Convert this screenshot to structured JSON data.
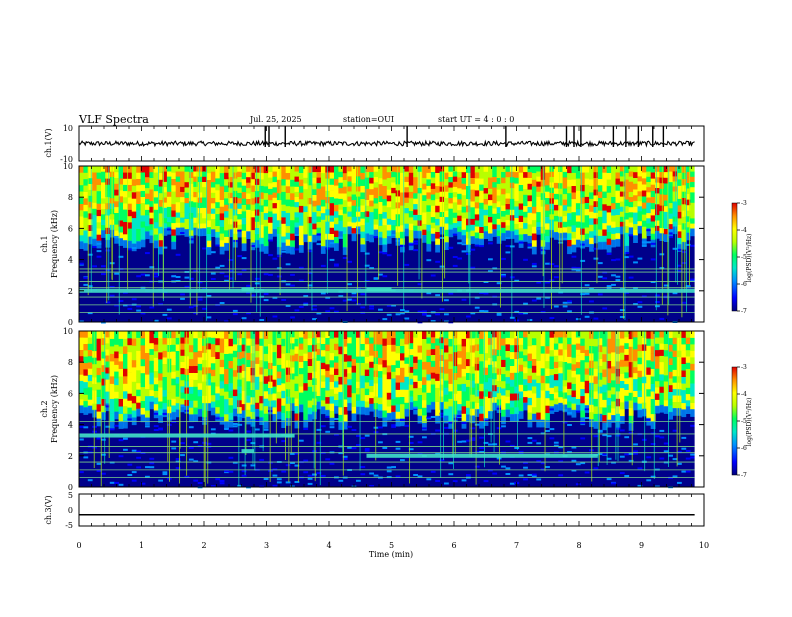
{
  "header": {
    "title": "VLF Spectra",
    "date": "Jul. 25, 2025",
    "station": "station=OUI",
    "start": "start UT =  4 : 0  : 0"
  },
  "chart_data": [
    {
      "type": "line",
      "panel": "waveform ch.1",
      "ylabel": "ch.1(V)",
      "xlim": [
        0,
        10
      ],
      "ylim": [
        -10,
        10
      ],
      "y_ticks": [
        "10",
        "-10"
      ],
      "baseline": 0,
      "spikes_x_min": [
        2.98,
        3.04,
        3.3,
        5.25,
        6.83,
        7.8,
        7.92,
        8.03,
        8.55,
        8.75,
        8.95,
        9.18,
        9.35
      ]
    },
    {
      "type": "heatmap",
      "panel": "spectrogram ch.1",
      "ylabel": "ch.1\nFrequency (kHz)",
      "xlim": [
        0,
        10
      ],
      "ylim": [
        0,
        10
      ],
      "y_ticks": [
        "0",
        "2",
        "4",
        "6",
        "8",
        "10"
      ],
      "color_scale": {
        "min": -7,
        "max": -3,
        "label": "log(PSD)(V²/Hz)",
        "ticks": [
          "-3",
          "-4",
          "-5",
          "-6",
          "-7"
        ]
      },
      "colors": [
        "#00007a",
        "#0000ff",
        "#0090ff",
        "#00e8c8",
        "#00ff60",
        "#b8ff00",
        "#ffff00",
        "#ff9000",
        "#e00000"
      ],
      "noise_floor_khz": 5.5,
      "hum_lines_khz": [
        0.6,
        1.1,
        1.6,
        2.2,
        2.6,
        3.2,
        3.4
      ],
      "features": [
        {
          "x_start": 0,
          "x_end": 10,
          "y_khz": 2.0,
          "label": ""
        },
        {
          "x_start": 2.6,
          "x_end": 2.8,
          "y_khz": 2.1,
          "label": ""
        },
        {
          "x_start": 4.6,
          "x_end": 5.0,
          "y_khz": 2.1,
          "label": ""
        }
      ]
    },
    {
      "type": "heatmap",
      "panel": "spectrogram ch.2",
      "ylabel": "ch.2\nFrequency (kHz)",
      "xlim": [
        0,
        10
      ],
      "ylim": [
        0,
        10
      ],
      "y_ticks": [
        "0",
        "2",
        "4",
        "6",
        "8",
        "10"
      ],
      "color_scale": {
        "min": -7,
        "max": -3,
        "label": "log(PSD)(V²/Hz)",
        "ticks": [
          "-3",
          "-4",
          "-5",
          "-6",
          "-7"
        ]
      },
      "noise_floor_khz": 4.8,
      "hum_lines_khz": [
        0.6,
        1.1,
        1.6,
        2.2,
        2.6,
        3.4,
        4.2
      ],
      "features": [
        {
          "x_start": 0,
          "x_end": 3.45,
          "y_khz": 3.3,
          "label": ""
        },
        {
          "x_start": 2.6,
          "x_end": 2.8,
          "y_khz": 2.3,
          "label": ""
        },
        {
          "x_start": 4.6,
          "x_end": 8.3,
          "y_khz": 2.0,
          "label": ""
        }
      ]
    },
    {
      "type": "line",
      "panel": "waveform ch.3",
      "ylabel": "ch.3(V)",
      "xlim": [
        0,
        10
      ],
      "ylim": [
        -5,
        5
      ],
      "y_ticks": [
        "5",
        "0",
        "-5"
      ],
      "constant_value": -1.5
    }
  ],
  "xaxis": {
    "label": "Time (min)",
    "ticks": [
      "0",
      "1",
      "2",
      "3",
      "4",
      "5",
      "6",
      "7",
      "8",
      "9",
      "10"
    ]
  }
}
